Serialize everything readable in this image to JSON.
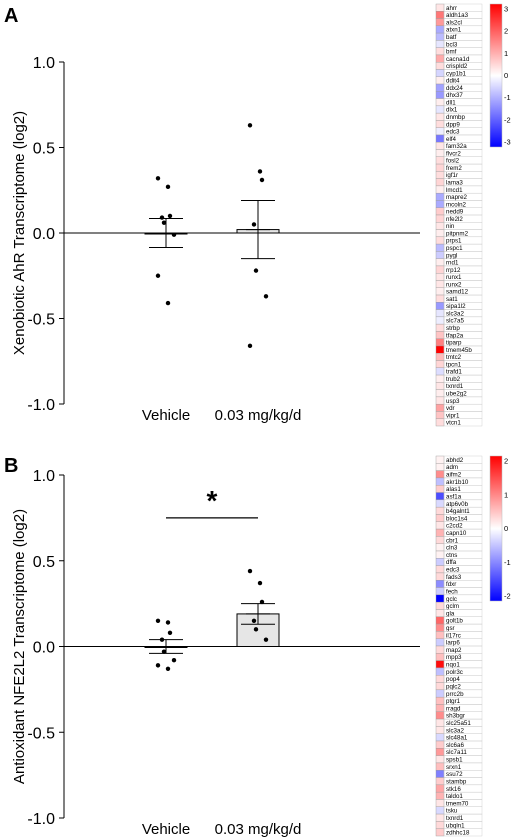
{
  "chart_data": [
    {
      "type": "bar",
      "panel_label": "A",
      "ylabel": "Xenobiotic AhR Transcriptome (log2)",
      "categories": [
        "Vehicle",
        "0.03 mg/kg/d"
      ],
      "ylim": [
        -1.0,
        1.0
      ],
      "yticks": [
        "1.0",
        "0.5",
        "0.0",
        "-0.5",
        "-1.0"
      ],
      "means": [
        0.0,
        0.02
      ],
      "sem": [
        0.085,
        0.17
      ],
      "points": [
        [
          0.32,
          0.27,
          0.1,
          0.09,
          0.06,
          -0.01,
          -0.25,
          -0.41
        ],
        [
          0.63,
          0.36,
          0.31,
          0.05,
          -0.22,
          -0.37,
          -0.66
        ]
      ],
      "significance": "",
      "heatmap": {
        "genes": [
          "ahrr",
          "aldh1a3",
          "als2cl",
          "atxn1",
          "batf",
          "bcl3",
          "bmf",
          "cacna1d",
          "crispld2",
          "cyp1b1",
          "ddit4",
          "ddx24",
          "dhx37",
          "dll1",
          "dlx1",
          "dnmbp",
          "dpp9",
          "edc3",
          "elf4",
          "fam32a",
          "flvcr2",
          "fosl2",
          "frem2",
          "igf1r",
          "lama3",
          "lmcd1",
          "mapre2",
          "mcoln2",
          "nedd9",
          "nfe2l2",
          "nin",
          "pitpnm2",
          "prps1",
          "pspc1",
          "pygl",
          "rnd1",
          "rrp12",
          "runx1",
          "runx2",
          "samd12",
          "sat1",
          "sipa1l2",
          "slc3a2",
          "slc7a5",
          "strbp",
          "tfap2a",
          "tiparp",
          "tmem45b",
          "tmtc2",
          "tpcn1",
          "trafd1",
          "trub2",
          "txnrd1",
          "ube2g2",
          "usp3",
          "vdr",
          "vipr1",
          "vtcn1"
        ],
        "values": [
          0.3,
          1.6,
          1.2,
          -1.0,
          -0.8,
          -0.3,
          0.4,
          1.0,
          0.4,
          -0.5,
          0.2,
          -1.1,
          -1.2,
          0.2,
          -0.3,
          0.3,
          0.4,
          -0.2,
          -1.6,
          0.3,
          0.2,
          0.4,
          0.5,
          0.4,
          0.5,
          0.2,
          -1.0,
          -1.0,
          0.6,
          0.5,
          0.3,
          0.2,
          0.4,
          -0.8,
          -0.6,
          0.2,
          0.5,
          0.3,
          0.3,
          0.2,
          0.4,
          -1.2,
          -0.3,
          -0.2,
          0.4,
          0.7,
          1.5,
          3.1,
          0.8,
          0.5,
          -0.4,
          0.2,
          0.3,
          0.2,
          0.3,
          1.1,
          0.7,
          0.4
        ],
        "scale_max": 3,
        "scale_min": -3,
        "scale_ticks": [
          "3",
          "2",
          "1",
          "0",
          "-1",
          "-2",
          "-3"
        ],
        "high_color": "#ff0000",
        "mid_color": "#ffffff",
        "low_color": "#0000ff"
      }
    },
    {
      "type": "bar",
      "panel_label": "B",
      "ylabel": "Antioxidant NFE2L2 Transcriptome (log2)",
      "categories": [
        "Vehicle",
        "0.03 mg/kg/d"
      ],
      "ylim": [
        -1.0,
        1.0
      ],
      "yticks": [
        "1.0",
        "0.5",
        "0.0",
        "-0.5",
        "-1.0"
      ],
      "means": [
        0.0,
        0.19
      ],
      "sem": [
        0.04,
        0.06
      ],
      "points": [
        [
          0.15,
          0.14,
          0.08,
          0.04,
          -0.03,
          -0.08,
          -0.11,
          -0.13
        ],
        [
          0.44,
          0.37,
          0.26,
          0.15,
          0.1,
          0.04
        ]
      ],
      "significance": "*",
      "heatmap": {
        "genes": [
          "abhd2",
          "adm",
          "aifm2",
          "akr1b10",
          "alas1",
          "asf1a",
          "atp6v0b",
          "b4galnt1",
          "bloc1s4",
          "c2cd2",
          "capn10",
          "cbr1",
          "cln3",
          "ctns",
          "dffa",
          "edc3",
          "fads3",
          "fdxr",
          "fech",
          "gclc",
          "gclm",
          "gla",
          "golt1b",
          "gsr",
          "il17rc",
          "larp6",
          "map2",
          "mpp3",
          "nqo1",
          "polr3c",
          "pop4",
          "pqlc2",
          "prrc2b",
          "ptgr1",
          "rragd",
          "sh3bgr",
          "slc25a51",
          "slc3a2",
          "slc48a1",
          "slc6a6",
          "slc7a11",
          "spsb1",
          "srxn1",
          "ssu72",
          "stambp",
          "stk16",
          "taldo1",
          "tmem70",
          "tsku",
          "txnrd1",
          "ubqln1",
          "zdhhc18"
        ],
        "values": [
          0.1,
          0.1,
          0.9,
          -0.5,
          0.4,
          -1.4,
          -0.3,
          0.3,
          0.4,
          0.2,
          0.6,
          0.3,
          0.1,
          0.1,
          -0.4,
          0.3,
          0.3,
          -0.9,
          -0.4,
          -2.0,
          0.3,
          0.2,
          1.2,
          0.9,
          0.5,
          -0.4,
          0.3,
          0.5,
          1.9,
          -0.5,
          0.3,
          0.3,
          -0.4,
          0.5,
          0.6,
          0.9,
          0.2,
          0.2,
          -0.3,
          0.4,
          0.8,
          0.2,
          0.5,
          -1.0,
          0.4,
          0.7,
          0.6,
          0.2,
          -0.3,
          0.2,
          0.3,
          0.4
        ],
        "scale_max": 2,
        "scale_min": -2,
        "scale_ticks": [
          "2",
          "1",
          "0",
          "-1",
          "-2"
        ],
        "high_color": "#ff0000",
        "mid_color": "#ffffff",
        "low_color": "#0000ff"
      }
    }
  ]
}
